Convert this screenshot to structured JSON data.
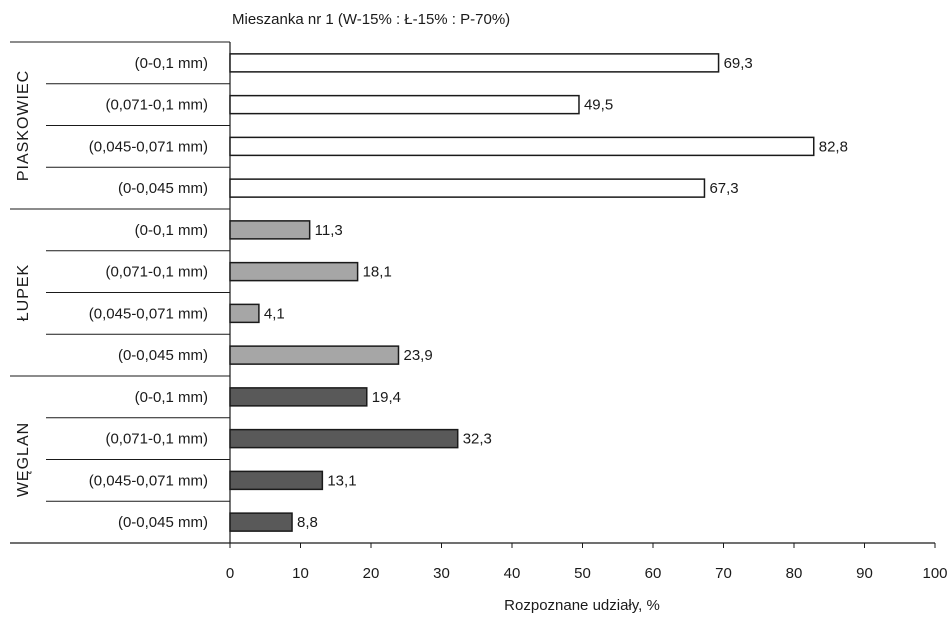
{
  "chart_data": {
    "type": "bar",
    "orientation": "horizontal",
    "title": "Mieszanka nr 1 (W-15% : Ł-15% : P-70%)",
    "xlabel": "Rozpoznane udziały, %",
    "ylabel": "",
    "xlim": [
      0,
      100
    ],
    "x_ticks": [
      "0",
      "10",
      "20",
      "30",
      "40",
      "50",
      "60",
      "70",
      "80",
      "90",
      "100"
    ],
    "grid": false,
    "legend": "none",
    "groups": [
      {
        "name": "PIASKOWIEC",
        "color": "#ffffff",
        "categories": [
          "(0-0,1 mm)",
          "(0,071-0,1 mm)",
          "(0,045-0,071 mm)",
          "(0-0,045 mm)"
        ],
        "values": [
          69.3,
          49.5,
          82.8,
          67.3
        ],
        "labels": [
          "69,3",
          "49,5",
          "82,8",
          "67,3"
        ]
      },
      {
        "name": "ŁUPEK",
        "color": "#a6a6a6",
        "categories": [
          "(0-0,1 mm)",
          "(0,071-0,1 mm)",
          "(0,045-0,071 mm)",
          "(0-0,045 mm)"
        ],
        "values": [
          11.3,
          18.1,
          4.1,
          23.9
        ],
        "labels": [
          "11,3",
          "18,1",
          "4,1",
          "23,9"
        ]
      },
      {
        "name": "WĘGLAN",
        "color": "#595959",
        "categories": [
          "(0-0,1 mm)",
          "(0,071-0,1 mm)",
          "(0,045-0,071 mm)",
          "(0-0,045 mm)"
        ],
        "values": [
          19.4,
          32.3,
          13.1,
          8.8
        ],
        "labels": [
          "19,4",
          "32,3",
          "13,1",
          "8,8"
        ]
      }
    ]
  }
}
